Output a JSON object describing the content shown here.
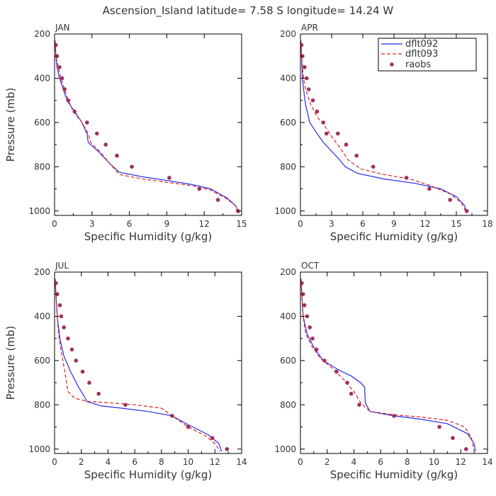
{
  "title": "Ascension_Island  latitude= 7.58 S longitude= 14.24 W",
  "legend": {
    "entries": [
      {
        "label": "dflt092",
        "color": "#2a2ae6",
        "style": "solid"
      },
      {
        "label": "dflt093",
        "color": "#e02020",
        "style": "dashed"
      },
      {
        "label": "raobs",
        "color": "#a0305a",
        "style": "dot"
      }
    ]
  },
  "chart_data": [
    {
      "type": "line",
      "panel_label": "JAN",
      "xlabel": "Specific Humidity (g/kg)",
      "ylabel": "Pressure (mb)",
      "xlim": [
        0,
        15
      ],
      "ylim": [
        200,
        1020
      ],
      "xticks": [
        0,
        3,
        6,
        9,
        12,
        15
      ],
      "yticks": [
        200,
        400,
        600,
        800,
        1000
      ],
      "series": [
        {
          "name": "dflt092",
          "points": [
            [
              0.05,
              230
            ],
            [
              0.1,
              300
            ],
            [
              0.2,
              350
            ],
            [
              0.4,
              400
            ],
            [
              0.7,
              450
            ],
            [
              1.0,
              500
            ],
            [
              1.6,
              550
            ],
            [
              2.2,
              600
            ],
            [
              2.6,
              650
            ],
            [
              2.7,
              690
            ],
            [
              3.5,
              730
            ],
            [
              4.5,
              790
            ],
            [
              5.2,
              825
            ],
            [
              7,
              845
            ],
            [
              9,
              862
            ],
            [
              11,
              880
            ],
            [
              12.5,
              900
            ],
            [
              13.8,
              940
            ],
            [
              14.5,
              975
            ],
            [
              14.8,
              1010
            ]
          ]
        },
        {
          "name": "dflt093",
          "points": [
            [
              0.05,
              230
            ],
            [
              0.1,
              300
            ],
            [
              0.3,
              350
            ],
            [
              0.5,
              400
            ],
            [
              0.8,
              450
            ],
            [
              1.1,
              500
            ],
            [
              1.5,
              550
            ],
            [
              2.2,
              600
            ],
            [
              2.7,
              650
            ],
            [
              2.9,
              690
            ],
            [
              3.6,
              730
            ],
            [
              4.5,
              790
            ],
            [
              5.2,
              835
            ],
            [
              7,
              855
            ],
            [
              9,
              870
            ],
            [
              11,
              885
            ],
            [
              12.5,
              905
            ],
            [
              13.8,
              945
            ],
            [
              14.5,
              975
            ],
            [
              14.8,
              1010
            ]
          ]
        },
        {
          "name": "raobs",
          "points": [
            [
              0.1,
              250
            ],
            [
              0.2,
              300
            ],
            [
              0.4,
              350
            ],
            [
              0.6,
              400
            ],
            [
              0.8,
              450
            ],
            [
              1.1,
              500
            ],
            [
              1.6,
              550
            ],
            [
              2.6,
              600
            ],
            [
              3.4,
              650
            ],
            [
              4.1,
              700
            ],
            [
              5.0,
              750
            ],
            [
              6.2,
              800
            ],
            [
              9.2,
              850
            ],
            [
              11.6,
              900
            ],
            [
              13.1,
              950
            ],
            [
              14.7,
              1000
            ]
          ]
        }
      ]
    },
    {
      "type": "line",
      "panel_label": "APR",
      "xlabel": "Specific Humidity (g/kg)",
      "ylabel": "",
      "xlim": [
        0,
        18
      ],
      "ylim": [
        200,
        1020
      ],
      "xticks": [
        0,
        3,
        6,
        9,
        12,
        15,
        18
      ],
      "yticks": [
        200,
        400,
        600,
        800,
        1000
      ],
      "series": [
        {
          "name": "dflt092",
          "points": [
            [
              0.05,
              230
            ],
            [
              0.1,
              300
            ],
            [
              0.2,
              400
            ],
            [
              0.3,
              450
            ],
            [
              0.5,
              520
            ],
            [
              0.9,
              600
            ],
            [
              1.6,
              650
            ],
            [
              2.2,
              690
            ],
            [
              3.0,
              730
            ],
            [
              3.8,
              770
            ],
            [
              4.3,
              800
            ],
            [
              5.5,
              830
            ],
            [
              8,
              855
            ],
            [
              11,
              875
            ],
            [
              13.5,
              900
            ],
            [
              15,
              935
            ],
            [
              15.8,
              975
            ],
            [
              16,
              1010
            ]
          ]
        },
        {
          "name": "dflt093",
          "points": [
            [
              0.05,
              230
            ],
            [
              0.1,
              300
            ],
            [
              0.3,
              400
            ],
            [
              0.5,
              450
            ],
            [
              1.0,
              520
            ],
            [
              1.7,
              580
            ],
            [
              2.4,
              620
            ],
            [
              3.1,
              670
            ],
            [
              3.9,
              720
            ],
            [
              4.6,
              770
            ],
            [
              5.8,
              810
            ],
            [
              8,
              835
            ],
            [
              10.5,
              855
            ],
            [
              12.5,
              885
            ],
            [
              14.5,
              925
            ],
            [
              15.5,
              965
            ],
            [
              16,
              1010
            ]
          ]
        },
        {
          "name": "raobs",
          "points": [
            [
              0.1,
              250
            ],
            [
              0.2,
              300
            ],
            [
              0.4,
              350
            ],
            [
              0.6,
              400
            ],
            [
              0.8,
              450
            ],
            [
              1.2,
              500
            ],
            [
              1.6,
              550
            ],
            [
              2.2,
              600
            ],
            [
              2.5,
              650
            ],
            [
              3.6,
              650
            ],
            [
              4.4,
              700
            ],
            [
              5.4,
              750
            ],
            [
              7.0,
              800
            ],
            [
              10.2,
              850
            ],
            [
              12.4,
              900
            ],
            [
              14.4,
              950
            ],
            [
              16.0,
              1000
            ]
          ]
        }
      ]
    },
    {
      "type": "line",
      "panel_label": "JUL",
      "xlabel": "Specific Humidity (g/kg)",
      "ylabel": "Pressure (mb)",
      "xlim": [
        0,
        14
      ],
      "ylim": [
        200,
        1020
      ],
      "xticks": [
        0,
        2,
        4,
        6,
        8,
        10,
        12,
        14
      ],
      "yticks": [
        200,
        400,
        600,
        800,
        1000
      ],
      "series": [
        {
          "name": "dflt092",
          "points": [
            [
              0.05,
              230
            ],
            [
              0.1,
              300
            ],
            [
              0.2,
              400
            ],
            [
              0.4,
              500
            ],
            [
              0.7,
              580
            ],
            [
              1.2,
              650
            ],
            [
              1.8,
              720
            ],
            [
              2.3,
              770
            ],
            [
              2.4,
              785
            ],
            [
              3.5,
              805
            ],
            [
              5,
              815
            ],
            [
              7,
              830
            ],
            [
              8.8,
              850
            ],
            [
              10,
              890
            ],
            [
              11.5,
              935
            ],
            [
              12.3,
              975
            ],
            [
              12.5,
              1010
            ]
          ]
        },
        {
          "name": "dflt093",
          "points": [
            [
              0.05,
              230
            ],
            [
              0.1,
              300
            ],
            [
              0.2,
              400
            ],
            [
              0.3,
              480
            ],
            [
              0.5,
              560
            ],
            [
              0.8,
              660
            ],
            [
              1.0,
              740
            ],
            [
              1.5,
              770
            ],
            [
              2.5,
              785
            ],
            [
              4,
              790
            ],
            [
              6,
              800
            ],
            [
              8,
              815
            ],
            [
              8.8,
              850
            ],
            [
              10,
              900
            ],
            [
              11.3,
              940
            ],
            [
              12,
              975
            ],
            [
              12.4,
              1010
            ]
          ]
        },
        {
          "name": "raobs",
          "points": [
            [
              0.1,
              250
            ],
            [
              0.2,
              300
            ],
            [
              0.4,
              350
            ],
            [
              0.5,
              400
            ],
            [
              0.7,
              450
            ],
            [
              1.0,
              500
            ],
            [
              1.3,
              550
            ],
            [
              1.6,
              600
            ],
            [
              2.1,
              650
            ],
            [
              2.6,
              700
            ],
            [
              3.3,
              750
            ],
            [
              5.3,
              800
            ],
            [
              8.8,
              850
            ],
            [
              10.0,
              900
            ],
            [
              11.8,
              950
            ],
            [
              12.9,
              1000
            ]
          ]
        }
      ]
    },
    {
      "type": "line",
      "panel_label": "OCT",
      "xlabel": "Specific Humidity (g/kg)",
      "ylabel": "",
      "xlim": [
        0,
        14
      ],
      "ylim": [
        200,
        1020
      ],
      "xticks": [
        0,
        2,
        4,
        6,
        8,
        10,
        12,
        14
      ],
      "yticks": [
        200,
        400,
        600,
        800,
        1000
      ],
      "series": [
        {
          "name": "dflt092",
          "points": [
            [
              0.05,
              230
            ],
            [
              0.1,
              300
            ],
            [
              0.2,
              400
            ],
            [
              0.5,
              480
            ],
            [
              1.0,
              540
            ],
            [
              1.7,
              600
            ],
            [
              2.8,
              640
            ],
            [
              3.8,
              670
            ],
            [
              4.5,
              700
            ],
            [
              4.8,
              720
            ],
            [
              4.85,
              790
            ],
            [
              5.2,
              830
            ],
            [
              7,
              850
            ],
            [
              9,
              865
            ],
            [
              11,
              885
            ],
            [
              12.5,
              930
            ],
            [
              13,
              975
            ],
            [
              13.1,
              1010
            ]
          ]
        },
        {
          "name": "dflt093",
          "points": [
            [
              0.05,
              230
            ],
            [
              0.1,
              300
            ],
            [
              0.2,
              400
            ],
            [
              0.4,
              480
            ],
            [
              0.9,
              540
            ],
            [
              1.5,
              590
            ],
            [
              2.5,
              640
            ],
            [
              3.3,
              690
            ],
            [
              4.0,
              740
            ],
            [
              4.5,
              790
            ],
            [
              5.2,
              830
            ],
            [
              7,
              845
            ],
            [
              9,
              855
            ],
            [
              11,
              870
            ],
            [
              12.3,
              900
            ],
            [
              12.8,
              950
            ],
            [
              13.0,
              1010
            ]
          ]
        },
        {
          "name": "raobs",
          "points": [
            [
              0.1,
              250
            ],
            [
              0.2,
              300
            ],
            [
              0.3,
              350
            ],
            [
              0.5,
              400
            ],
            [
              0.7,
              450
            ],
            [
              0.9,
              500
            ],
            [
              1.2,
              550
            ],
            [
              1.8,
              600
            ],
            [
              2.7,
              650
            ],
            [
              3.5,
              700
            ],
            [
              3.8,
              750
            ],
            [
              4.4,
              800
            ],
            [
              7.0,
              850
            ],
            [
              10.4,
              900
            ],
            [
              11.4,
              950
            ],
            [
              12.4,
              1000
            ]
          ]
        }
      ]
    }
  ]
}
